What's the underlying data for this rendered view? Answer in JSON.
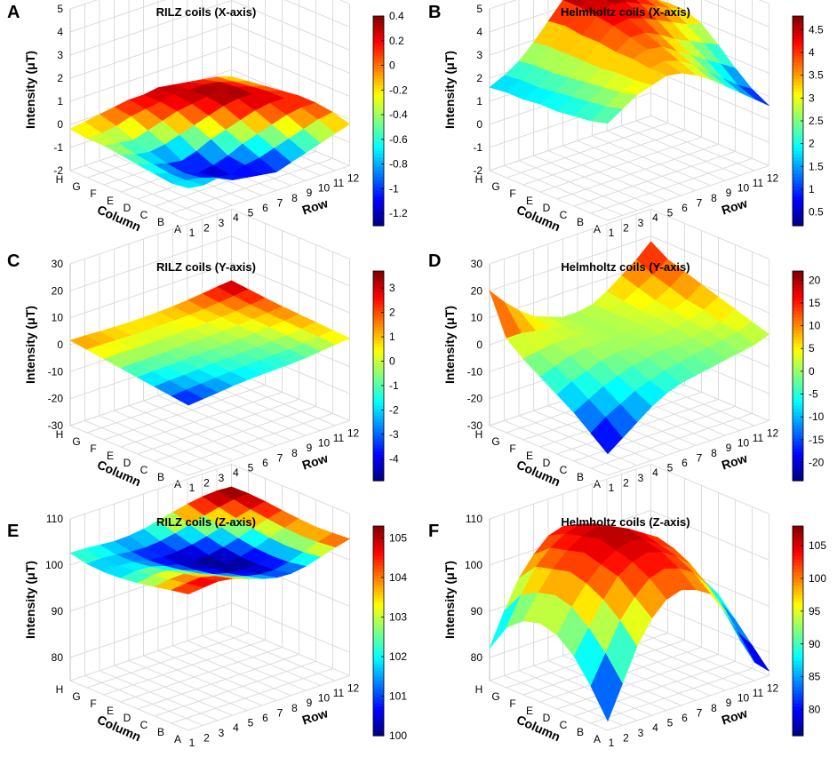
{
  "figure": {
    "x_axis_title": "Row",
    "y_axis_title": "Column",
    "z_axis_title": "Intensity (μT)",
    "row_ticks": [
      "1",
      "2",
      "3",
      "4",
      "5",
      "6",
      "7",
      "8",
      "9",
      "10",
      "11",
      "12"
    ],
    "column_ticks": [
      "A",
      "B",
      "C",
      "D",
      "E",
      "F",
      "G",
      "H"
    ],
    "colormap": "jet"
  },
  "chart_data": [
    {
      "panel": "A",
      "type": "surface",
      "title": "RILZ coils (X-axis)",
      "xlabel": "Row",
      "ylabel": "Column",
      "zlabel": "Intensity (μT)",
      "zlim": [
        -2,
        5
      ],
      "zticks": [
        -2,
        -1,
        0,
        1,
        2,
        3,
        4,
        5
      ],
      "colorbar": {
        "min": -1.3,
        "max": 0.4,
        "ticks": [
          -1.2,
          -1,
          -0.8,
          -0.6,
          -0.4,
          -0.2,
          0,
          0.2,
          0.4
        ]
      },
      "z": [
        [
          -0.6,
          -0.7,
          -0.6,
          -0.9,
          -1.0,
          -1.1,
          -1.2,
          -1.0,
          -0.8,
          -0.6,
          -0.4,
          -0.2
        ],
        [
          -0.7,
          -0.8,
          -0.9,
          -1.1,
          -1.2,
          -1.0,
          -0.9,
          -0.7,
          -0.5,
          -0.3,
          -0.1,
          0.0
        ],
        [
          -0.6,
          -0.8,
          -1.0,
          -1.2,
          -1.1,
          -0.9,
          -0.6,
          -0.4,
          -0.2,
          0.0,
          0.1,
          0.1
        ],
        [
          -0.5,
          -0.7,
          -0.9,
          -1.0,
          -0.8,
          -0.5,
          -0.3,
          -0.1,
          0.1,
          0.2,
          0.2,
          0.1
        ],
        [
          -0.4,
          -0.6,
          -0.7,
          -0.6,
          -0.4,
          -0.2,
          0.0,
          0.2,
          0.3,
          0.3,
          0.2,
          0.0
        ],
        [
          -0.3,
          -0.4,
          -0.5,
          -0.3,
          -0.1,
          0.1,
          0.2,
          0.3,
          0.4,
          0.3,
          0.1,
          -0.1
        ],
        [
          -0.3,
          -0.3,
          -0.2,
          0.0,
          0.1,
          0.2,
          0.3,
          0.3,
          0.3,
          0.2,
          0.0,
          -0.2
        ],
        [
          -0.2,
          -0.1,
          0.0,
          0.1,
          0.2,
          0.2,
          0.3,
          0.2,
          0.1,
          0.0,
          -0.1,
          -0.3
        ]
      ]
    },
    {
      "panel": "B",
      "type": "surface",
      "title": "Helmholtz coils (X-axis)",
      "xlabel": "Row",
      "ylabel": "Column",
      "zlabel": "Intensity (μT)",
      "zlim": [
        -2,
        5
      ],
      "zticks": [
        -2,
        -1,
        0,
        1,
        2,
        3,
        4,
        5
      ],
      "colorbar": {
        "min": 0.2,
        "max": 4.8,
        "ticks": [
          0.5,
          1,
          1.5,
          2,
          2.5,
          3,
          3.5,
          4,
          4.5
        ]
      },
      "z": [
        [
          2.2,
          2.6,
          3.0,
          3.2,
          3.4,
          3.3,
          3.0,
          2.6,
          2.1,
          1.6,
          1.1,
          0.6
        ],
        [
          2.0,
          2.4,
          2.8,
          3.1,
          3.4,
          3.5,
          3.3,
          2.9,
          2.4,
          1.9,
          1.4,
          1.0
        ],
        [
          1.9,
          2.3,
          2.7,
          3.1,
          3.5,
          3.7,
          3.6,
          3.2,
          2.8,
          2.4,
          2.0,
          1.6
        ],
        [
          1.8,
          2.2,
          2.6,
          3.0,
          3.5,
          3.9,
          3.9,
          3.6,
          3.2,
          2.9,
          2.6,
          2.3
        ],
        [
          1.8,
          2.1,
          2.5,
          3.0,
          3.6,
          4.1,
          4.2,
          4.0,
          3.7,
          3.4,
          3.1,
          2.9
        ],
        [
          1.7,
          2.0,
          2.4,
          3.0,
          3.6,
          4.2,
          4.5,
          4.4,
          4.1,
          3.8,
          3.5,
          3.2
        ],
        [
          1.7,
          2.0,
          2.4,
          3.0,
          3.7,
          4.3,
          4.7,
          4.7,
          4.4,
          4.0,
          3.6,
          3.2
        ],
        [
          1.6,
          1.9,
          2.3,
          2.9,
          3.6,
          4.3,
          4.8,
          4.8,
          4.5,
          4.0,
          3.4,
          2.9
        ]
      ]
    },
    {
      "panel": "C",
      "type": "surface",
      "title": "RILZ coils (Y-axis)",
      "xlabel": "Row",
      "ylabel": "Column",
      "zlabel": "Intensity (μT)",
      "zlim": [
        -30,
        30
      ],
      "zticks": [
        -30,
        -20,
        -10,
        0,
        10,
        20,
        30
      ],
      "colorbar": {
        "min": -4.9,
        "max": 3.7,
        "ticks": [
          -4,
          -3,
          -2,
          -1,
          0,
          1,
          2,
          3
        ]
      },
      "z": [
        [
          -4.0,
          -3.5,
          -3.0,
          -2.4,
          -2.0,
          -1.8,
          -1.6,
          -1.5,
          -1.2,
          -0.6,
          0.0,
          0.6
        ],
        [
          -3.2,
          -2.8,
          -2.4,
          -2.0,
          -1.6,
          -1.4,
          -1.2,
          -1.0,
          -0.8,
          -0.3,
          0.3,
          0.9
        ],
        [
          -2.4,
          -2.0,
          -1.8,
          -1.5,
          -1.2,
          -1.0,
          -0.8,
          -0.7,
          -0.4,
          0.0,
          0.6,
          1.2
        ],
        [
          -1.6,
          -1.3,
          -1.2,
          -1.0,
          -0.8,
          -0.6,
          -0.5,
          -0.3,
          0.0,
          0.4,
          0.9,
          1.5
        ],
        [
          -0.8,
          -0.6,
          -0.6,
          -0.5,
          -0.4,
          -0.3,
          -0.1,
          0.1,
          0.3,
          0.7,
          1.2,
          1.8
        ],
        [
          0.0,
          0.1,
          0.0,
          0.0,
          0.0,
          0.1,
          0.2,
          0.4,
          0.7,
          1.1,
          1.6,
          2.3
        ],
        [
          0.8,
          0.8,
          0.6,
          0.5,
          0.4,
          0.5,
          0.6,
          0.8,
          1.1,
          1.6,
          2.2,
          2.9
        ],
        [
          1.6,
          1.5,
          1.2,
          1.0,
          0.9,
          0.9,
          1.0,
          1.3,
          1.7,
          2.3,
          3.0,
          3.5
        ]
      ]
    },
    {
      "panel": "D",
      "type": "surface",
      "title": "Helmholtz coils (Y-axis)",
      "xlabel": "Row",
      "ylabel": "Column",
      "zlabel": "Intensity (μT)",
      "zlim": [
        -30,
        30
      ],
      "zticks": [
        -30,
        -20,
        -10,
        0,
        10,
        20,
        30
      ],
      "colorbar": {
        "min": -24,
        "max": 22,
        "ticks": [
          -20,
          -15,
          -10,
          -5,
          0,
          5,
          10,
          15,
          20
        ]
      },
      "z": [
        [
          -22,
          -18,
          -14,
          -10,
          -7,
          -5,
          -4,
          -3,
          -2,
          -1,
          0,
          2
        ],
        [
          -17,
          -13,
          -10,
          -7,
          -5,
          -3,
          -2,
          -1,
          0,
          1,
          2,
          4
        ],
        [
          -12,
          -9,
          -6,
          -4,
          -2,
          -1,
          0,
          0,
          1,
          2,
          3,
          6
        ],
        [
          -8,
          -5,
          -3,
          -1,
          0,
          0,
          1,
          1,
          2,
          3,
          5,
          8
        ],
        [
          -4,
          -2,
          0,
          1,
          1,
          1,
          1,
          2,
          3,
          4,
          6,
          10
        ],
        [
          0,
          1,
          2,
          2,
          2,
          1,
          1,
          2,
          3,
          5,
          8,
          12
        ],
        [
          5,
          5,
          4,
          3,
          2,
          1,
          1,
          2,
          4,
          7,
          10,
          14
        ],
        [
          20,
          14,
          9,
          5,
          3,
          1,
          1,
          2,
          5,
          9,
          13,
          18
        ]
      ]
    },
    {
      "panel": "E",
      "type": "surface",
      "title": "RILZ coils (Z-axis)",
      "xlabel": "Row",
      "ylabel": "Column",
      "zlabel": "Intensity (μT)",
      "zlim": [
        75,
        110
      ],
      "zticks": [
        80,
        90,
        100,
        110
      ],
      "colorbar": {
        "min": 100,
        "max": 105.3,
        "ticks": [
          100,
          101,
          102,
          103,
          104,
          105
        ]
      },
      "z": [
        [
          104.5,
          104.8,
          105.1,
          104.6,
          103.5,
          102.4,
          101.6,
          101.4,
          101.9,
          102.8,
          103.8,
          104.6
        ],
        [
          103.8,
          104.2,
          104.4,
          103.6,
          102.4,
          101.4,
          100.7,
          100.6,
          101.2,
          102.3,
          103.4,
          104.3
        ],
        [
          103.0,
          103.5,
          103.6,
          102.6,
          101.4,
          100.5,
          100.1,
          100.3,
          101.0,
          102.1,
          103.2,
          104.1
        ],
        [
          102.3,
          102.8,
          102.8,
          101.8,
          100.7,
          100.1,
          100.0,
          100.4,
          101.2,
          102.3,
          103.4,
          104.3
        ],
        [
          101.8,
          102.2,
          102.1,
          101.2,
          100.4,
          100.2,
          100.3,
          100.9,
          101.8,
          102.8,
          103.8,
          104.6
        ],
        [
          101.6,
          101.8,
          101.6,
          100.9,
          100.5,
          100.6,
          101.0,
          101.7,
          102.6,
          103.5,
          104.3,
          105.0
        ],
        [
          101.8,
          101.9,
          101.6,
          101.2,
          101.0,
          101.3,
          101.9,
          102.7,
          103.6,
          104.3,
          104.9,
          105.2
        ],
        [
          102.6,
          102.5,
          102.2,
          101.9,
          102.0,
          102.4,
          103.1,
          103.9,
          104.6,
          105.1,
          105.3,
          105.1
        ]
      ]
    },
    {
      "panel": "F",
      "type": "surface",
      "title": "Helmholtz coils (Z-axis)",
      "xlabel": "Row",
      "ylabel": "Column",
      "zlabel": "Intensity (μT)",
      "zlim": [
        75,
        110
      ],
      "zticks": [
        80,
        90,
        100,
        110
      ],
      "colorbar": {
        "min": 76,
        "max": 108,
        "ticks": [
          80,
          85,
          90,
          95,
          100,
          105
        ]
      },
      "z": [
        [
          77,
          84,
          91,
          96,
          99,
          100,
          99,
          97,
          92,
          85,
          79,
          76
        ],
        [
          83,
          89,
          95,
          99,
          102,
          103,
          102,
          100,
          96,
          90,
          84,
          80
        ],
        [
          88,
          93,
          98,
          102,
          104,
          105,
          104,
          102,
          99,
          94,
          89,
          84
        ],
        [
          91,
          96,
          100,
          103,
          105,
          106,
          105,
          103,
          101,
          97,
          92,
          88
        ],
        [
          92,
          97,
          101,
          104,
          106,
          107,
          106,
          104,
          102,
          98,
          94,
          90
        ],
        [
          91,
          96,
          100,
          103,
          105,
          106,
          105,
          103,
          101,
          98,
          94,
          91
        ],
        [
          88,
          94,
          99,
          102,
          104,
          105,
          104,
          102,
          100,
          97,
          94,
          91
        ],
        [
          82,
          89,
          95,
          99,
          102,
          103,
          102,
          100,
          98,
          95,
          92,
          90
        ]
      ]
    }
  ]
}
